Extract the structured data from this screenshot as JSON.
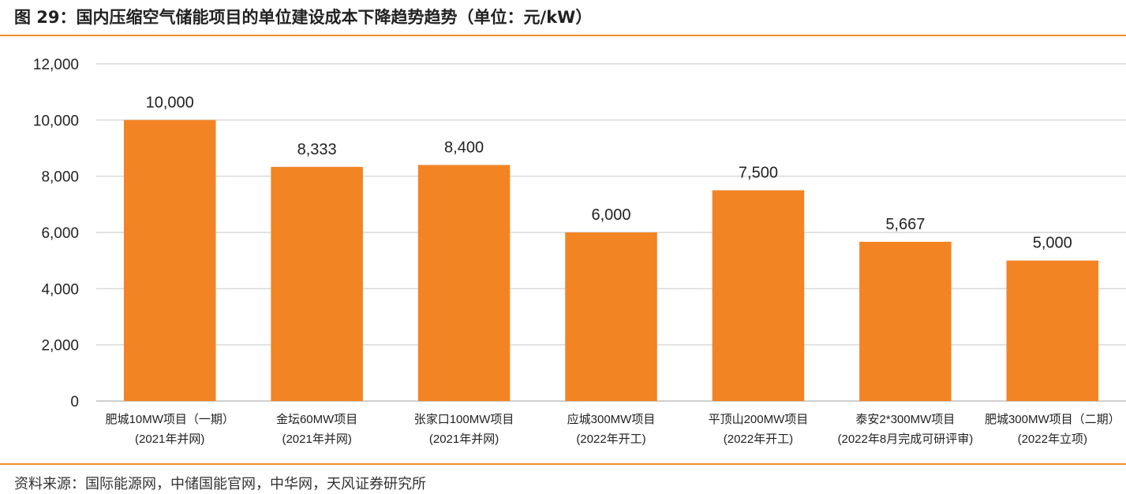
{
  "figure_title": "图 29：国内压缩空气储能项目的单位建设成本下降趋势趋势（单位：元/kW）",
  "source_note": "资料来源：国际能源网，中储国能官网，中华网，天风证券研究所",
  "colors": {
    "bar": "#f28424",
    "accent_rule": "#f28c28",
    "grid": "#d9d9d9",
    "axis": "#bfbfbf"
  },
  "chart_data": {
    "type": "bar",
    "title": "",
    "xlabel": "",
    "ylabel": "",
    "ylim": [
      0,
      12000
    ],
    "yticks": [
      0,
      2000,
      4000,
      6000,
      8000,
      10000,
      12000
    ],
    "ytick_labels": [
      "0",
      "2,000",
      "4,000",
      "6,000",
      "8,000",
      "10,000",
      "12,000"
    ],
    "grid": true,
    "legend": "none",
    "categories": [
      {
        "line1": "肥城10MW项目（一期）",
        "line2": "(2021年并网)"
      },
      {
        "line1": "金坛60MW项目",
        "line2": "(2021年并网)"
      },
      {
        "line1": "张家口100MW项目",
        "line2": "(2021年并网)"
      },
      {
        "line1": "应城300MW项目",
        "line2": "(2022年开工)"
      },
      {
        "line1": "平顶山200MW项目",
        "line2": "(2022年开工)"
      },
      {
        "line1": "泰安2*300MW项目",
        "line2": "(2022年8月完成可研评审)"
      },
      {
        "line1": "肥城300MW项目（二期）",
        "line2": "(2022年立项)"
      }
    ],
    "values": [
      10000,
      8333,
      8400,
      6000,
      7500,
      5667,
      5000
    ],
    "value_labels": [
      "10,000",
      "8,333",
      "8,400",
      "6,000",
      "7,500",
      "5,667",
      "5,000"
    ]
  }
}
